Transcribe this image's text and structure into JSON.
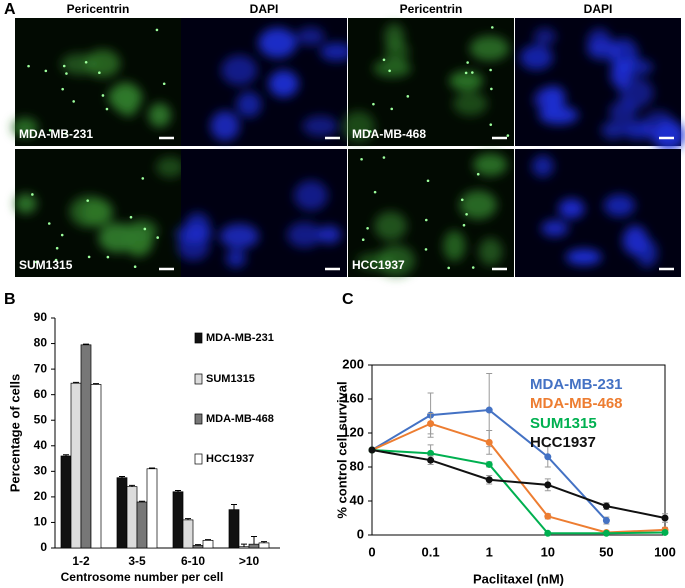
{
  "panel_a": {
    "label": "A",
    "column_headers": [
      "Pericentrin",
      "DAPI",
      "Pericentrin",
      "DAPI"
    ],
    "cell_lines": [
      "MDA-MB-231",
      "MDA-MB-468",
      "SUM1315",
      "HCC1937"
    ]
  },
  "chart_data": [
    {
      "type": "bar",
      "panel_label": "B",
      "x_label": "Centrosome number per cell",
      "y_label": "Percentage of cells",
      "categories": [
        "1-2",
        "3-5",
        "6-10",
        ">10"
      ],
      "series": [
        {
          "name": "MDA-MB-231",
          "color": "#111111",
          "values": [
            36,
            27.5,
            22,
            15
          ],
          "errors": [
            0.5,
            0.5,
            0.5,
            2
          ]
        },
        {
          "name": "SUM1315",
          "color": "#dcdcdc",
          "values": [
            64.5,
            24,
            11,
            0.5
          ],
          "errors": [
            0.3,
            0.5,
            0.5,
            1
          ]
        },
        {
          "name": "MDA-MB-468",
          "color": "#777777",
          "values": [
            79.5,
            18,
            1,
            1.5
          ],
          "errors": [
            0.3,
            0.3,
            0.3,
            3
          ]
        },
        {
          "name": "HCC1937",
          "color": "#ffffff",
          "values": [
            64,
            31,
            3,
            2
          ],
          "errors": [
            0.3,
            0.3,
            0.3,
            0.5
          ]
        }
      ],
      "ylim": [
        0,
        90
      ],
      "yticks": [
        0,
        10,
        20,
        30,
        40,
        50,
        60,
        70,
        80,
        90
      ],
      "legend": "right"
    },
    {
      "type": "line",
      "panel_label": "C",
      "x_label": "Paclitaxel (nM)",
      "y_label": "% control cell survival",
      "categories": [
        "0",
        "0.1",
        "1",
        "10",
        "50",
        "100"
      ],
      "series": [
        {
          "name": "MDA-MB-231",
          "color": "#4472c4",
          "values": [
            100,
            141,
            147,
            92,
            17,
            null
          ],
          "errors": [
            0,
            26,
            43,
            12,
            4,
            null
          ]
        },
        {
          "name": "MDA-MB-468",
          "color": "#ed7d31",
          "values": [
            100,
            131,
            109,
            22,
            3,
            6
          ],
          "errors": [
            0,
            12,
            14,
            3,
            2,
            3
          ]
        },
        {
          "name": "SUM1315",
          "color": "#00b050",
          "values": [
            100,
            96,
            83,
            2,
            2,
            3
          ],
          "errors": [
            0,
            10,
            3,
            1,
            1,
            1
          ]
        },
        {
          "name": "HCC1937",
          "color": "#111111",
          "values": [
            100,
            88,
            65,
            59,
            34,
            20
          ],
          "errors": [
            0,
            5,
            5,
            7,
            4,
            5
          ]
        }
      ],
      "ylim": [
        0,
        200
      ],
      "yticks": [
        0,
        40,
        80,
        120,
        160,
        200
      ],
      "legend": "top-right"
    }
  ]
}
